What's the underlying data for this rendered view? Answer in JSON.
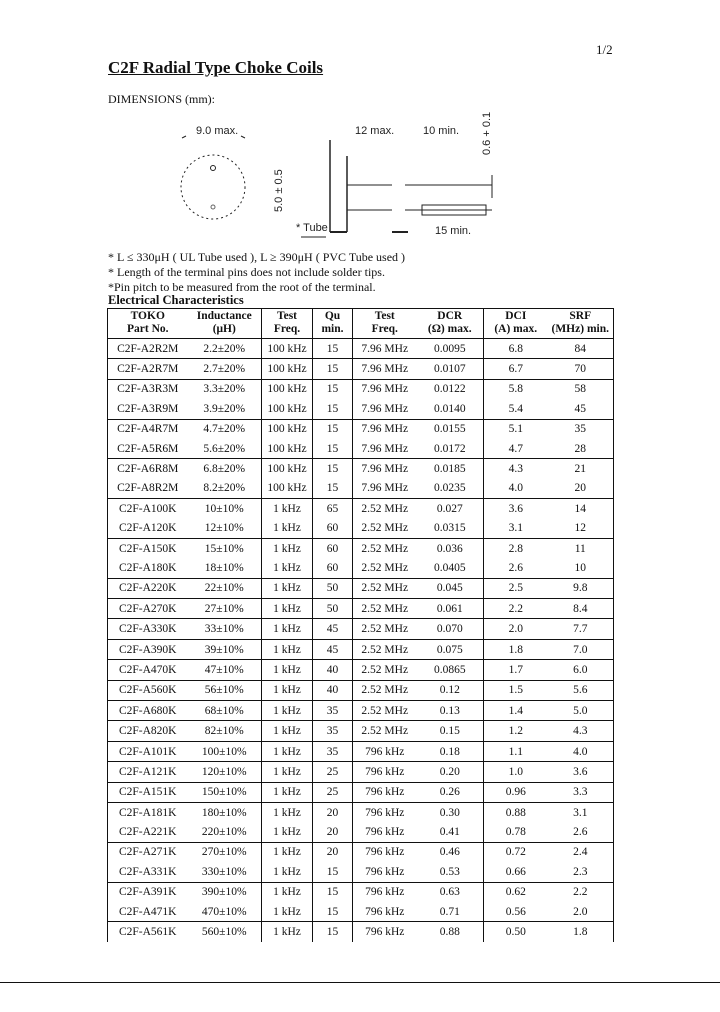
{
  "page_number": "1/2",
  "title": "C2F Radial Type Choke Coils",
  "dimensions_label": "DIMENSIONS (mm):",
  "diagram": {
    "width_label": "9.0 max.",
    "pitch_label": "5.0 ± 0.5",
    "length_label": "12 max.",
    "lead_label": "10 min.",
    "wire_label": "0.6 + 0.1",
    "tube_label": "* Tube",
    "lead2_label": "15 min."
  },
  "notes": [
    "* L ≤ 330μH ( UL Tube used ), L ≥ 390μH ( PVC Tube used )",
    "* Length of the terminal pins does not include solder tips.",
    "*Pin pitch to be measured from the root of the terminal."
  ],
  "electrical_heading": "Electrical Characteristics",
  "table": {
    "headers": [
      [
        "TOKO",
        "Part No."
      ],
      [
        "Inductance",
        "(μH)"
      ],
      [
        "Test",
        "Freq."
      ],
      [
        "Qu",
        "min."
      ],
      [
        "Test",
        "Freq."
      ],
      [
        "DCR",
        "(Ω) max."
      ],
      [
        "DCI",
        "(A) max."
      ],
      [
        "SRF",
        "(MHz) min."
      ]
    ],
    "rows": [
      [
        "C2F-A2R2M",
        "2.2±20%",
        "100 kHz",
        "15",
        "7.96 MHz",
        "0.0095",
        "6.8",
        "84"
      ],
      [
        "C2F-A2R7M",
        "2.7±20%",
        "100 kHz",
        "15",
        "7.96 MHz",
        "0.0107",
        "6.7",
        "70"
      ],
      [
        "C2F-A3R3M",
        "3.3±20%",
        "100 kHz",
        "15",
        "7.96 MHz",
        "0.0122",
        "5.8",
        "58"
      ],
      [
        "C2F-A3R9M",
        "3.9±20%",
        "100 kHz",
        "15",
        "7.96 MHz",
        "0.0140",
        "5.4",
        "45"
      ],
      [
        "C2F-A4R7M",
        "4.7±20%",
        "100 kHz",
        "15",
        "7.96 MHz",
        "0.0155",
        "5.1",
        "35"
      ],
      [
        "C2F-A5R6M",
        "5.6±20%",
        "100 kHz",
        "15",
        "7.96 MHz",
        "0.0172",
        "4.7",
        "28"
      ],
      [
        "C2F-A6R8M",
        "6.8±20%",
        "100 kHz",
        "15",
        "7.96 MHz",
        "0.0185",
        "4.3",
        "21"
      ],
      [
        "C2F-A8R2M",
        "8.2±20%",
        "100 kHz",
        "15",
        "7.96 MHz",
        "0.0235",
        "4.0",
        "20"
      ],
      [
        "C2F-A100K",
        "10±10%",
        "1 kHz",
        "65",
        "2.52 MHz",
        "0.027",
        "3.6",
        "14"
      ],
      [
        "C2F-A120K",
        "12±10%",
        "1 kHz",
        "60",
        "2.52 MHz",
        "0.0315",
        "3.1",
        "12"
      ],
      [
        "C2F-A150K",
        "15±10%",
        "1 kHz",
        "60",
        "2.52 MHz",
        "0.036",
        "2.8",
        "11"
      ],
      [
        "C2F-A180K",
        "18±10%",
        "1 kHz",
        "60",
        "2.52 MHz",
        "0.0405",
        "2.6",
        "10"
      ],
      [
        "C2F-A220K",
        "22±10%",
        "1 kHz",
        "50",
        "2.52 MHz",
        "0.045",
        "2.5",
        "9.8"
      ],
      [
        "C2F-A270K",
        "27±10%",
        "1 kHz",
        "50",
        "2.52 MHz",
        "0.061",
        "2.2",
        "8.4"
      ],
      [
        "C2F-A330K",
        "33±10%",
        "1 kHz",
        "45",
        "2.52 MHz",
        "0.070",
        "2.0",
        "7.7"
      ],
      [
        "C2F-A390K",
        "39±10%",
        "1 kHz",
        "45",
        "2.52 MHz",
        "0.075",
        "1.8",
        "7.0"
      ],
      [
        "C2F-A470K",
        "47±10%",
        "1 kHz",
        "40",
        "2.52 MHz",
        "0.0865",
        "1.7",
        "6.0"
      ],
      [
        "C2F-A560K",
        "56±10%",
        "1 kHz",
        "40",
        "2.52 MHz",
        "0.12",
        "1.5",
        "5.6"
      ],
      [
        "C2F-A680K",
        "68±10%",
        "1 kHz",
        "35",
        "2.52 MHz",
        "0.13",
        "1.4",
        "5.0"
      ],
      [
        "C2F-A820K",
        "82±10%",
        "1 kHz",
        "35",
        "2.52 MHz",
        "0.15",
        "1.2",
        "4.3"
      ],
      [
        "C2F-A101K",
        "100±10%",
        "1 kHz",
        "35",
        "796 kHz",
        "0.18",
        "1.1",
        "4.0"
      ],
      [
        "C2F-A121K",
        "120±10%",
        "1 kHz",
        "25",
        "796 kHz",
        "0.20",
        "1.0",
        "3.6"
      ],
      [
        "C2F-A151K",
        "150±10%",
        "1 kHz",
        "25",
        "796 kHz",
        "0.26",
        "0.96",
        "3.3"
      ],
      [
        "C2F-A181K",
        "180±10%",
        "1 kHz",
        "20",
        "796 kHz",
        "0.30",
        "0.88",
        "3.1"
      ],
      [
        "C2F-A221K",
        "220±10%",
        "1 kHz",
        "20",
        "796 kHz",
        "0.41",
        "0.78",
        "2.6"
      ],
      [
        "C2F-A271K",
        "270±10%",
        "1 kHz",
        "20",
        "796 kHz",
        "0.46",
        "0.72",
        "2.4"
      ],
      [
        "C2F-A331K",
        "330±10%",
        "1 kHz",
        "15",
        "796 kHz",
        "0.53",
        "0.66",
        "2.3"
      ],
      [
        "C2F-A391K",
        "390±10%",
        "1 kHz",
        "15",
        "796 kHz",
        "0.63",
        "0.62",
        "2.2"
      ],
      [
        "C2F-A471K",
        "470±10%",
        "1 kHz",
        "15",
        "796 kHz",
        "0.71",
        "0.56",
        "2.0"
      ],
      [
        "C2F-A561K",
        "560±10%",
        "1 kHz",
        "15",
        "796 kHz",
        "0.88",
        "0.50",
        "1.8"
      ]
    ]
  }
}
